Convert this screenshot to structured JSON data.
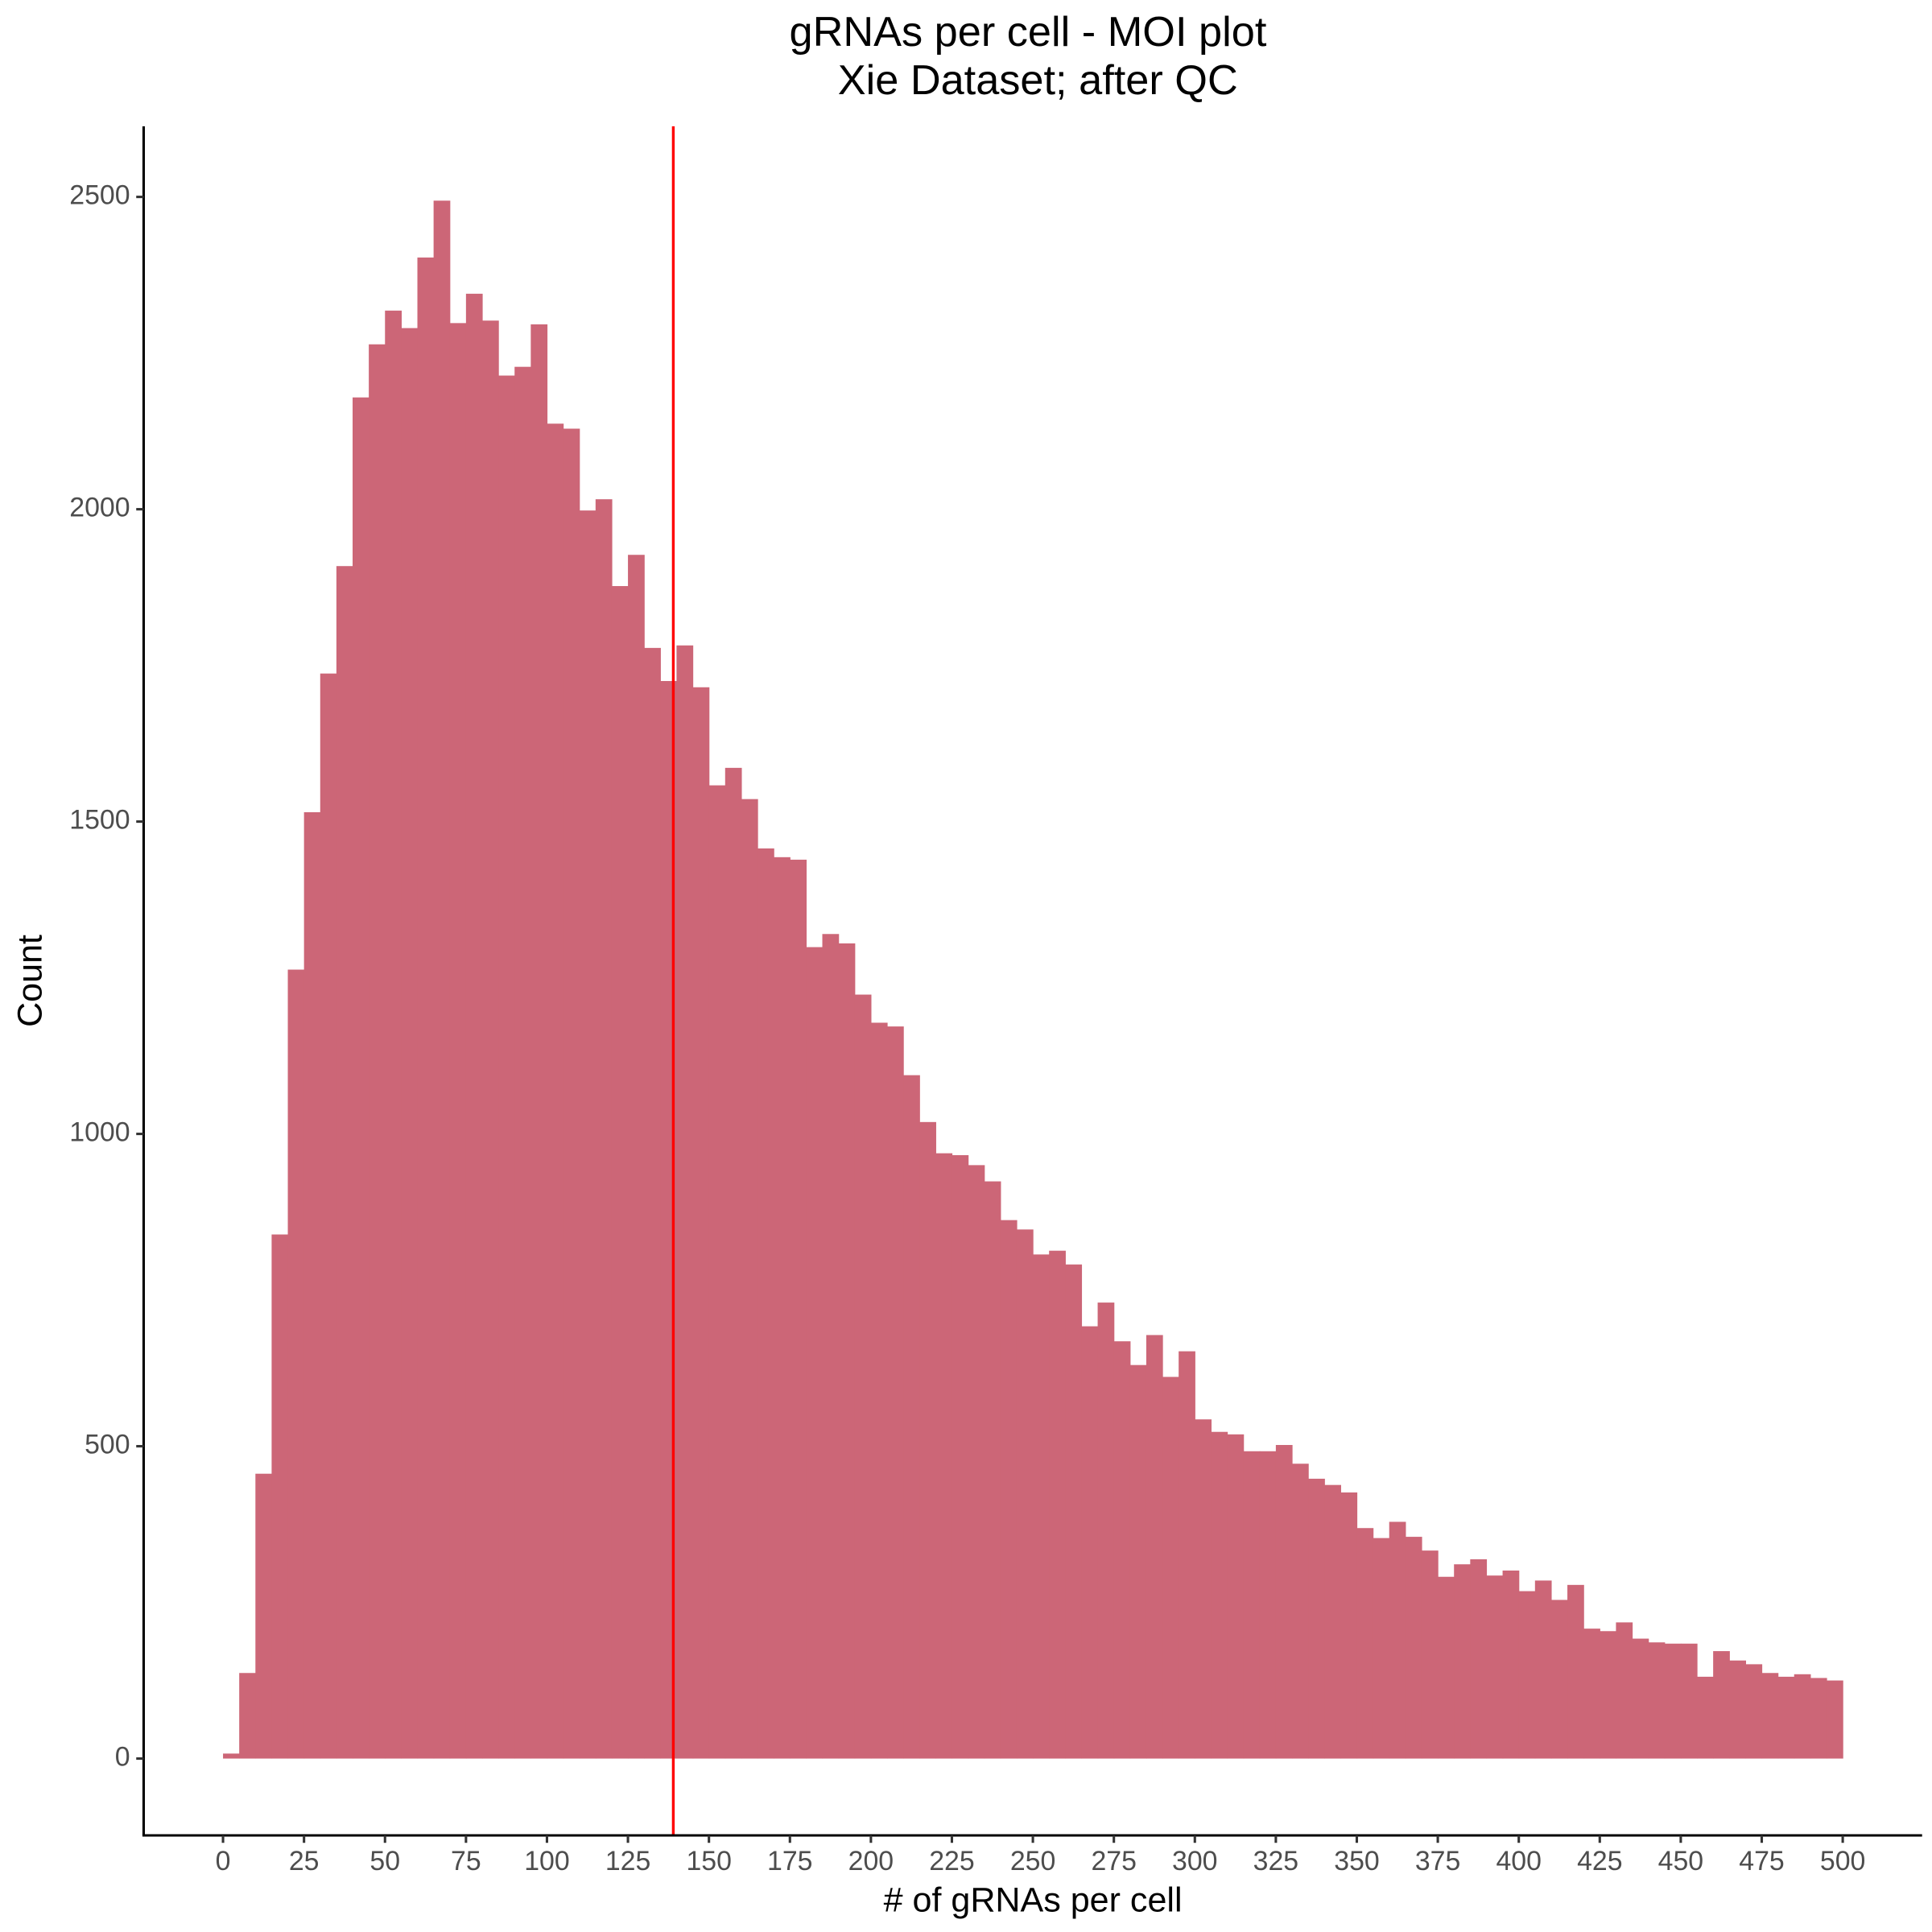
{
  "chart_data": {
    "type": "histogram",
    "title": "gRNAs per cell - MOI plot",
    "subtitle": "Xie Dataset; after QC",
    "x_label": "# of gRNAs per cell",
    "y_label": "Count",
    "color": "#cc6677",
    "bins": [
      0,
      5,
      10,
      15,
      20,
      25,
      30,
      35,
      40,
      45,
      50,
      55,
      60,
      65,
      70,
      75,
      80,
      85,
      90,
      95,
      100,
      105,
      110,
      115,
      120,
      125,
      130,
      135,
      140,
      145,
      150,
      155,
      160,
      165,
      170,
      175,
      180,
      185,
      190,
      195,
      200,
      205,
      210,
      215,
      220,
      225,
      230,
      235,
      240,
      245,
      250,
      255,
      260,
      265,
      270,
      275,
      280,
      285,
      290,
      295,
      300,
      305,
      310,
      315,
      320,
      325,
      330,
      335,
      340,
      345,
      350,
      355,
      360,
      365,
      370,
      375,
      380,
      385,
      390,
      395,
      400,
      405,
      410,
      415,
      420,
      425,
      430,
      435,
      440,
      445,
      450,
      455,
      460,
      465,
      470,
      475,
      480,
      485,
      490,
      495,
      500
    ],
    "values": [
      8,
      137,
      456,
      839,
      1263,
      1515,
      1737,
      1909,
      2179,
      2264,
      2318,
      2290,
      2403,
      2494,
      2298,
      2345,
      2302,
      2214,
      2228,
      2296,
      2137,
      2129,
      1998,
      2016,
      1877,
      1927,
      1778,
      1725,
      1782,
      1715,
      1558,
      1586,
      1536,
      1457,
      1443,
      1439,
      1299,
      1320,
      1305,
      1223,
      1178,
      1172,
      1094,
      1019,
      969,
      966,
      950,
      924,
      862,
      847,
      807,
      813,
      791,
      692,
      730,
      668,
      630,
      678,
      611,
      652,
      543,
      523,
      519,
      492,
      492,
      502,
      472,
      448,
      438,
      426,
      369,
      353,
      379,
      355,
      333,
      291,
      311,
      319,
      293,
      301,
      268,
      285,
      254,
      278,
      208,
      204,
      218,
      192,
      186,
      184,
      184,
      131,
      172,
      157,
      151,
      137,
      131,
      135,
      129,
      125
    ],
    "vline": {
      "value": 139,
      "color": "#ff0000"
    },
    "xlim": [
      -24.5,
      524.5
    ],
    "ylim": [
      -123,
      2613
    ],
    "xticks": [
      0,
      25,
      50,
      75,
      100,
      125,
      150,
      175,
      200,
      225,
      250,
      275,
      300,
      325,
      350,
      375,
      400,
      425,
      450,
      475,
      500
    ],
    "yticks": [
      0,
      500,
      1000,
      1500,
      2000,
      2500
    ]
  }
}
